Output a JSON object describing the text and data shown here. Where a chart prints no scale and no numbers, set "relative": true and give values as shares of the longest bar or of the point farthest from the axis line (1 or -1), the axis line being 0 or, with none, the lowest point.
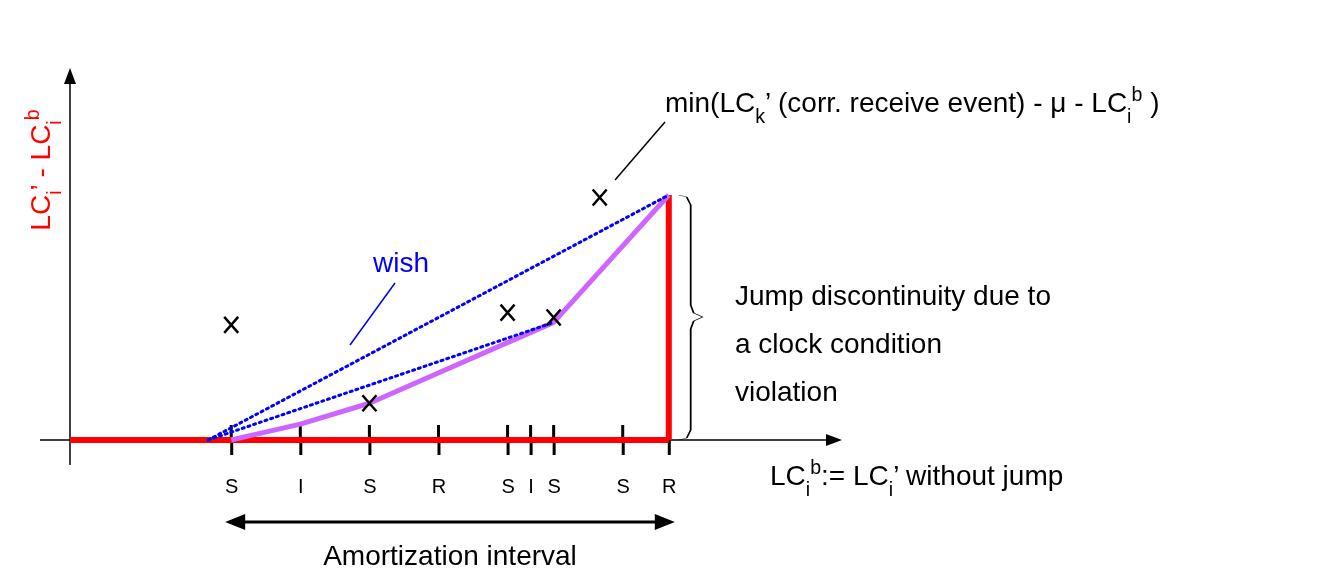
{
  "chart_data": {
    "type": "line",
    "relative": true,
    "categories": [
      null,
      null,
      null,
      null,
      null,
      null,
      null,
      "S",
      null,
      null,
      "I",
      null,
      null,
      "S",
      null,
      null,
      "R",
      null,
      null,
      "S",
      "I",
      "S",
      null,
      null,
      "S",
      null,
      "R",
      null,
      null,
      null,
      null,
      null,
      null,
      null
    ],
    "xlabel": "LC$_{i}$$^{b}$:= LC$_{i}$’ without jump",
    "ylabel": "LC$_{i}$’ - LC$_{i}$$^{b}$",
    "series": [
      {
        "color": "#ff0000",
        "line_style": "solid",
        "values": [
          0,
          0,
          0,
          0,
          0,
          0,
          0,
          0,
          0,
          0,
          0,
          0,
          0,
          0,
          0,
          0,
          0,
          0,
          0,
          0,
          0,
          0,
          0,
          0,
          0,
          0,
          0,
          null,
          null,
          null,
          null,
          null,
          null,
          null
        ]
      },
      {
        "type": "bar",
        "color": "#ff0000",
        "values": [
          null,
          null,
          null,
          null,
          null,
          null,
          null,
          null,
          null,
          null,
          null,
          null,
          null,
          null,
          null,
          null,
          null,
          null,
          null,
          null,
          null,
          null,
          null,
          null,
          null,
          null,
          1,
          null,
          null,
          null,
          null,
          null,
          null,
          null
        ]
      },
      {
        "color": "#cc66ff",
        "line_style": "solid",
        "values": [
          null,
          null,
          null,
          null,
          null,
          null,
          null,
          0,
          null,
          null,
          0.065,
          null,
          null,
          0.15,
          null,
          null,
          null,
          null,
          null,
          null,
          null,
          0.48,
          null,
          null,
          null,
          null,
          1,
          null,
          null,
          null,
          null,
          null,
          null,
          null
        ]
      },
      {
        "type": "line",
        "color": "#0000ff",
        "line_style": "dotted",
        "values": [
          null,
          null,
          null,
          null,
          null,
          null,
          0,
          null,
          null,
          null,
          null,
          null,
          null,
          null,
          null,
          null,
          null,
          null,
          null,
          null,
          null,
          null,
          null,
          null,
          null,
          null,
          1,
          null,
          null,
          null,
          null,
          null,
          null,
          null
        ]
      },
      {
        "type": "line",
        "color": "#0000ff",
        "line_style": "dotted",
        "values": [
          null,
          null,
          null,
          null,
          null,
          null,
          0,
          null,
          null,
          null,
          null,
          null,
          null,
          null,
          null,
          null,
          null,
          null,
          null,
          null,
          null,
          0.48,
          null,
          null,
          null,
          null,
          null,
          null,
          null,
          null,
          null,
          null,
          null,
          null
        ]
      },
      {
        "type": "scatter",
        "marker": "cross",
        "color": "#000000",
        "values": [
          null,
          null,
          null,
          null,
          null,
          null,
          null,
          0.47,
          null,
          null,
          null,
          null,
          null,
          0.15,
          null,
          null,
          null,
          null,
          null,
          0.52,
          null,
          0.5,
          null,
          0.99,
          null,
          null,
          null,
          null,
          null,
          null,
          null,
          null,
          null,
          null
        ]
      }
    ],
    "annotations": [
      "wish",
      "min(LC$_{k}$’ (corr. receive event) - μ - LC$_{i}$$^{b}$ )",
      "Jump discontinuity due to a clock condition violation",
      "Amortization interval"
    ]
  }
}
